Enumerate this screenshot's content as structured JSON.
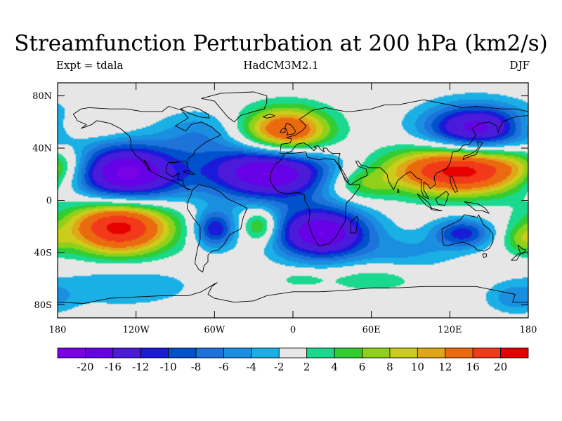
{
  "header": {
    "title": "Streamfunction Perturbation at 200 hPa (km2/s)",
    "left_label": "Expt = tdala",
    "center_label": "HadCM3M2.1",
    "right_label": "DJF"
  },
  "map": {
    "projection": "cylindrical-equidistant",
    "lon_range": [
      -180,
      180
    ],
    "lat_range": [
      -90,
      90
    ],
    "background_color": "#e6e6e6",
    "coastline_color": "#000000",
    "lat_ticks": [
      {
        "value": 80,
        "label": "80N"
      },
      {
        "value": 40,
        "label": "40N"
      },
      {
        "value": 0,
        "label": "0"
      },
      {
        "value": -40,
        "label": "40S"
      },
      {
        "value": -80,
        "label": "80S"
      }
    ],
    "lon_ticks": [
      {
        "value": -180,
        "label": "180"
      },
      {
        "value": -120,
        "label": "120W"
      },
      {
        "value": -60,
        "label": "60W"
      },
      {
        "value": 0,
        "label": "0"
      },
      {
        "value": 60,
        "label": "60E"
      },
      {
        "value": 120,
        "label": "120E"
      },
      {
        "value": 180,
        "label": "180"
      }
    ],
    "features": [
      {
        "lon": -128,
        "lat": 20,
        "amplitude": -22,
        "lon_extent": 30,
        "lat_extent": 16
      },
      {
        "lon": -18,
        "lat": 22,
        "amplitude": -21,
        "lon_extent": 34,
        "lat_extent": 15
      },
      {
        "lon": 22,
        "lat": -25,
        "amplitude": -20,
        "lon_extent": 26,
        "lat_extent": 14
      },
      {
        "lon": 140,
        "lat": 55,
        "amplitude": -18,
        "lon_extent": 28,
        "lat_extent": 13
      },
      {
        "lon": -133,
        "lat": -20,
        "amplitude": 22,
        "lon_extent": 28,
        "lat_extent": 15
      },
      {
        "lon": 128,
        "lat": 23,
        "amplitude": 22,
        "lon_extent": 38,
        "lat_extent": 13
      },
      {
        "lon": -5,
        "lat": 52,
        "amplitude": 18,
        "lon_extent": 24,
        "lat_extent": 13
      },
      {
        "lon": -60,
        "lat": -22,
        "amplitude": -12,
        "lon_extent": 11,
        "lat_extent": 10
      },
      {
        "lon": 130,
        "lat": -25,
        "amplitude": -11,
        "lon_extent": 16,
        "lat_extent": 8
      },
      {
        "lon": -72,
        "lat": 52,
        "amplitude": -5,
        "lon_extent": 22,
        "lat_extent": 12
      },
      {
        "lon": -160,
        "lat": 57,
        "amplitude": 4,
        "lon_extent": 22,
        "lat_extent": 7
      },
      {
        "lon": -178,
        "lat": 28,
        "amplitude": 3,
        "lon_extent": 16,
        "lat_extent": 10
      },
      {
        "lon": -25,
        "lat": -20,
        "amplitude": 9,
        "lon_extent": 10,
        "lat_extent": 9
      },
      {
        "lon": 50,
        "lat": 12,
        "amplitude": 6,
        "lon_extent": 18,
        "lat_extent": 9
      },
      {
        "lon": 60,
        "lat": -60,
        "amplitude": 4,
        "lon_extent": 26,
        "lat_extent": 7
      },
      {
        "lon": 5,
        "lat": -60,
        "amplitude": 3,
        "lon_extent": 14,
        "lat_extent": 5
      },
      {
        "lon": -130,
        "lat": -65,
        "amplitude": -4,
        "lon_extent": 40,
        "lat_extent": 12
      },
      {
        "lon": 90,
        "lat": -40,
        "amplitude": -4,
        "lon_extent": 25,
        "lat_extent": 10
      },
      {
        "lon": 175,
        "lat": -30,
        "amplitude": 5,
        "lon_extent": 10,
        "lat_extent": 8
      },
      {
        "lon": 170,
        "lat": -75,
        "amplitude": -5,
        "lon_extent": 15,
        "lat_extent": 8
      }
    ]
  },
  "colorbar": {
    "levels": [
      "-20",
      "-16",
      "-12",
      "-10",
      "-8",
      "-6",
      "-4",
      "-2",
      "2",
      "4",
      "6",
      "8",
      "10",
      "12",
      "16",
      "20"
    ],
    "colors": [
      "#7a00e6",
      "#6600e6",
      "#4c1ad9",
      "#1a1ad9",
      "#0052cc",
      "#1e73db",
      "#1a8fe0",
      "#1ab0e6",
      "#e6e6e6",
      "#1ad98f",
      "#33cc33",
      "#8fd11a",
      "#cccc1a",
      "#e0a61a",
      "#eb6a10",
      "#f23a1a",
      "#e60000"
    ]
  }
}
